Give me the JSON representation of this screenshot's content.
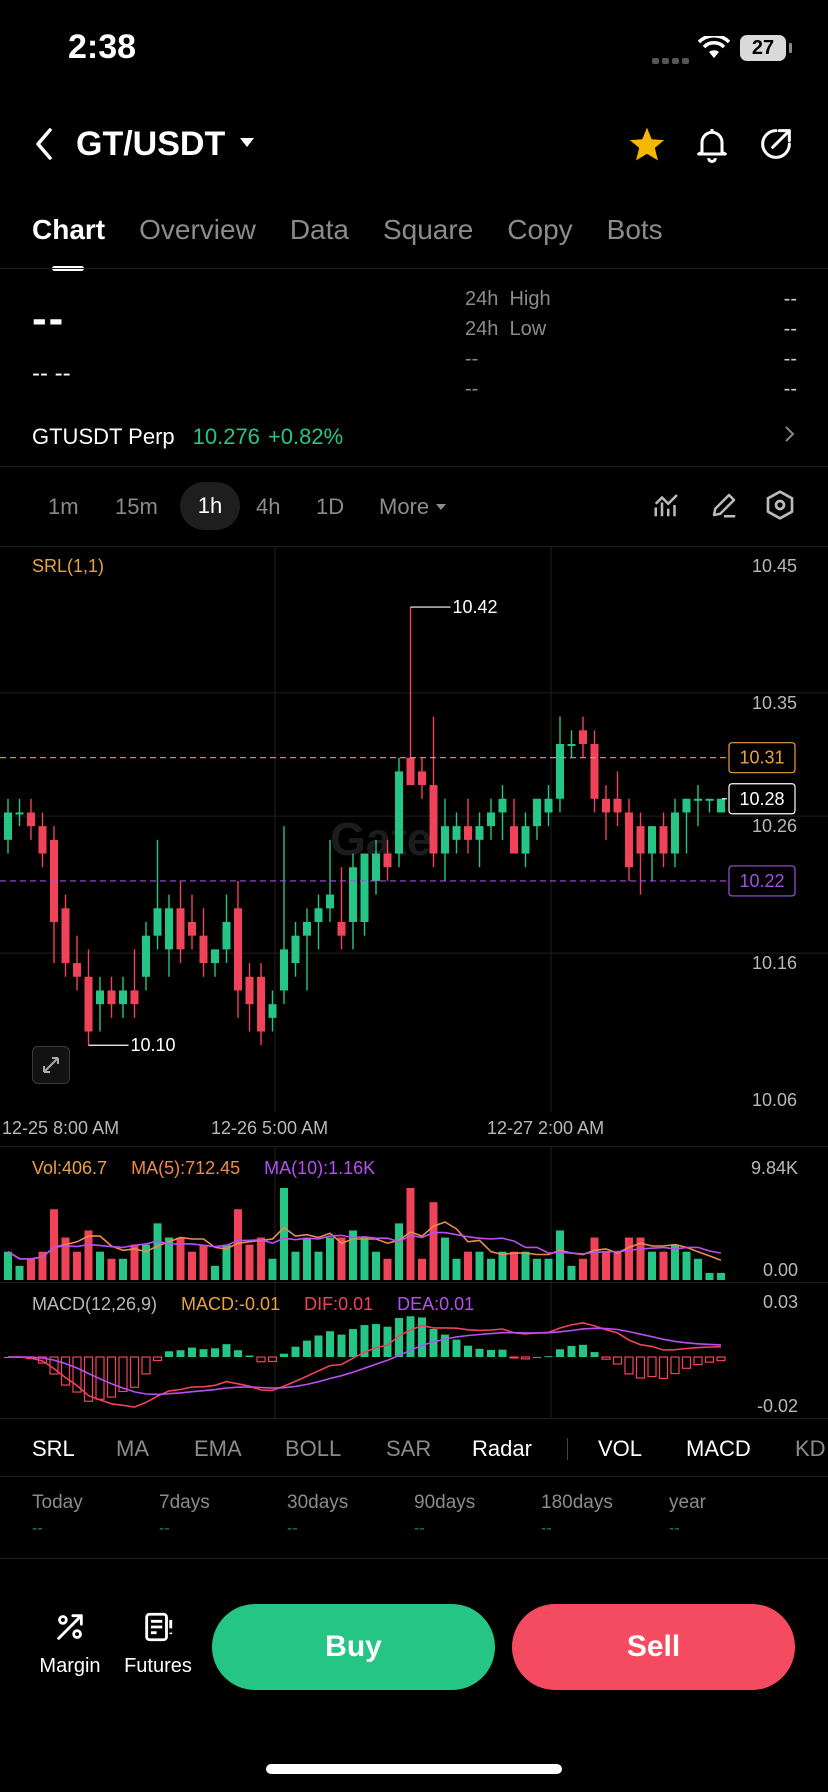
{
  "status_bar": {
    "time": "2:38",
    "battery": "27"
  },
  "header": {
    "pair": "GT/USDT"
  },
  "tabs": [
    {
      "label": "Chart",
      "active": true
    },
    {
      "label": "Overview"
    },
    {
      "label": "Data"
    },
    {
      "label": "Square"
    },
    {
      "label": "Copy"
    },
    {
      "label": "Bots"
    }
  ],
  "price": {
    "last": "--",
    "change": "-- --",
    "stats": [
      {
        "label": "24h  High",
        "value": "--"
      },
      {
        "label": "24h  Low",
        "value": "--"
      },
      {
        "label": "--",
        "value": "--"
      },
      {
        "label": "--",
        "value": "--"
      }
    ]
  },
  "perp": {
    "name": "GTUSDT Perp",
    "price": "10.276",
    "change": "+0.82%"
  },
  "intervals": [
    "1m",
    "15m",
    "1h",
    "4h",
    "1D",
    "More"
  ],
  "active_interval": "1h",
  "indicator_label": "SRL(1,1)",
  "chart_data": {
    "type": "candlestick",
    "y_ticks": [
      "10.45",
      "10.35",
      "10.26",
      "10.16",
      "10.06"
    ],
    "x_ticks": [
      "12-25 8:00 AM",
      "12-26 5:00 AM",
      "12-27 2:00 AM"
    ],
    "annotations": {
      "high": "10.42",
      "low": "10.10"
    },
    "price_lines": [
      {
        "value": "10.31",
        "color": "#e8a33d"
      },
      {
        "value": "10.28",
        "color": "#ffffff"
      },
      {
        "value": "10.22",
        "color": "#a24fe0"
      }
    ],
    "ohlc": [
      [
        10.25,
        10.28,
        10.24,
        10.27
      ],
      [
        10.27,
        10.28,
        10.26,
        10.27
      ],
      [
        10.27,
        10.28,
        10.25,
        10.26
      ],
      [
        10.26,
        10.27,
        10.23,
        10.24
      ],
      [
        10.25,
        10.26,
        10.16,
        10.19
      ],
      [
        10.2,
        10.21,
        10.15,
        10.16
      ],
      [
        10.16,
        10.18,
        10.14,
        10.15
      ],
      [
        10.15,
        10.17,
        10.1,
        10.11
      ],
      [
        10.13,
        10.15,
        10.11,
        10.14
      ],
      [
        10.14,
        10.15,
        10.12,
        10.13
      ],
      [
        10.13,
        10.15,
        10.12,
        10.14
      ],
      [
        10.14,
        10.17,
        10.12,
        10.13
      ],
      [
        10.15,
        10.19,
        10.14,
        10.18
      ],
      [
        10.18,
        10.25,
        10.17,
        10.2
      ],
      [
        10.17,
        10.21,
        10.15,
        10.2
      ],
      [
        10.2,
        10.22,
        10.16,
        10.17
      ],
      [
        10.19,
        10.21,
        10.17,
        10.18
      ],
      [
        10.18,
        10.2,
        10.15,
        10.16
      ],
      [
        10.16,
        10.17,
        10.15,
        10.17
      ],
      [
        10.17,
        10.21,
        10.16,
        10.19
      ],
      [
        10.2,
        10.22,
        10.12,
        10.14
      ],
      [
        10.15,
        10.16,
        10.11,
        10.13
      ],
      [
        10.15,
        10.16,
        10.1,
        10.11
      ],
      [
        10.12,
        10.14,
        10.11,
        10.13
      ],
      [
        10.14,
        10.26,
        10.13,
        10.17
      ],
      [
        10.16,
        10.19,
        10.15,
        10.18
      ],
      [
        10.18,
        10.2,
        10.14,
        10.19
      ],
      [
        10.19,
        10.21,
        10.17,
        10.2
      ],
      [
        10.2,
        10.25,
        10.19,
        10.21
      ],
      [
        10.19,
        10.23,
        10.17,
        10.18
      ],
      [
        10.19,
        10.24,
        10.17,
        10.23
      ],
      [
        10.19,
        10.24,
        10.18,
        10.24
      ],
      [
        10.22,
        10.25,
        10.21,
        10.24
      ],
      [
        10.24,
        10.25,
        10.22,
        10.23
      ],
      [
        10.24,
        10.31,
        10.23,
        10.3
      ],
      [
        10.31,
        10.42,
        10.29,
        10.29
      ],
      [
        10.3,
        10.31,
        10.28,
        10.29
      ],
      [
        10.29,
        10.34,
        10.23,
        10.24
      ],
      [
        10.24,
        10.28,
        10.22,
        10.26
      ],
      [
        10.25,
        10.27,
        10.24,
        10.26
      ],
      [
        10.26,
        10.28,
        10.24,
        10.25
      ],
      [
        10.25,
        10.27,
        10.23,
        10.26
      ],
      [
        10.26,
        10.28,
        10.25,
        10.27
      ],
      [
        10.27,
        10.29,
        10.25,
        10.28
      ],
      [
        10.26,
        10.28,
        10.24,
        10.24
      ],
      [
        10.24,
        10.27,
        10.23,
        10.26
      ],
      [
        10.26,
        10.28,
        10.25,
        10.28
      ],
      [
        10.27,
        10.29,
        10.26,
        10.28
      ],
      [
        10.28,
        10.34,
        10.27,
        10.32
      ],
      [
        10.32,
        10.33,
        10.31,
        10.32
      ],
      [
        10.33,
        10.34,
        10.31,
        10.32
      ],
      [
        10.32,
        10.33,
        10.27,
        10.28
      ],
      [
        10.28,
        10.29,
        10.25,
        10.27
      ],
      [
        10.28,
        10.3,
        10.26,
        10.27
      ],
      [
        10.27,
        10.28,
        10.22,
        10.23
      ],
      [
        10.26,
        10.27,
        10.21,
        10.24
      ],
      [
        10.24,
        10.26,
        10.22,
        10.26
      ],
      [
        10.26,
        10.27,
        10.23,
        10.24
      ],
      [
        10.24,
        10.28,
        10.23,
        10.27
      ],
      [
        10.27,
        10.28,
        10.24,
        10.28
      ],
      [
        10.28,
        10.29,
        10.26,
        10.28
      ],
      [
        10.28,
        10.28,
        10.27,
        10.28
      ],
      [
        10.27,
        10.28,
        10.27,
        10.28
      ]
    ]
  },
  "volume": {
    "vol": "Vol:406.7",
    "ma5": "MA(5):712.45",
    "ma10": "MA(10):1.16K",
    "y_top": "9.84K",
    "y_bottom": "0.00"
  },
  "macd": {
    "label": "MACD(12,26,9)",
    "macd": "MACD:-0.01",
    "dif": "DIF:0.01",
    "dea": "DEA:0.01",
    "y_top": "0.03",
    "y_bottom": "-0.02"
  },
  "indicator_tabs": [
    "SRL",
    "MA",
    "EMA",
    "BOLL",
    "SAR",
    "Radar"
  ],
  "sub_indicator_tabs": [
    "VOL",
    "MACD",
    "KD"
  ],
  "periods": [
    {
      "label": "Today",
      "value": "--"
    },
    {
      "label": "7days",
      "value": "--"
    },
    {
      "label": "30days",
      "value": "--"
    },
    {
      "label": "90days",
      "value": "--"
    },
    {
      "label": "180days",
      "value": "--"
    },
    {
      "label": "year",
      "value": "--"
    }
  ],
  "bottom": {
    "margin": "Margin",
    "futures": "Futures",
    "buy": "Buy",
    "sell": "Sell"
  },
  "colors": {
    "up": "#25c585",
    "down": "#f0435a",
    "accent_star": "#f5b800"
  }
}
